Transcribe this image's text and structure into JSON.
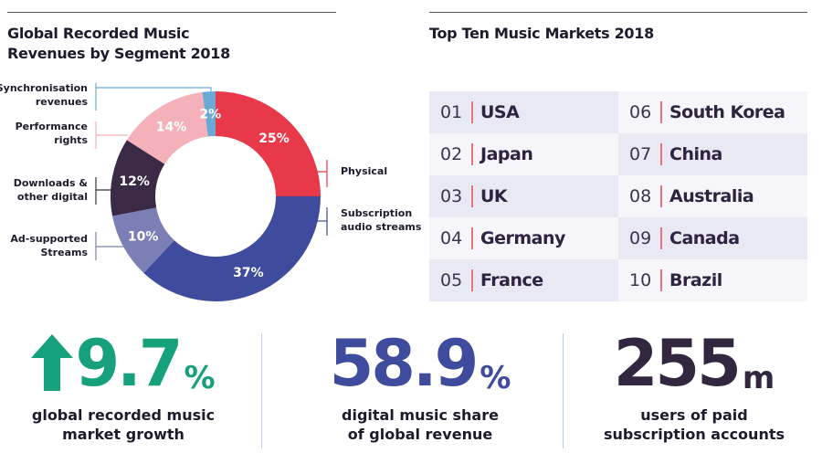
{
  "left_title": "Global Recorded Music Revenues by Segment 2018",
  "right_title": "Top Ten Music Markets 2018",
  "chart_data": {
    "type": "pie",
    "title": "Global Recorded Music Revenues by Segment 2018",
    "donut": true,
    "start": "top, clockwise",
    "slices": [
      {
        "label": "Physical",
        "value": 25,
        "display": "25%",
        "color": "#e8394a"
      },
      {
        "label": "Subscription audio streams",
        "value": 37,
        "display": "37%",
        "color": "#3f4b9c"
      },
      {
        "label": "Ad-supported Streams",
        "value": 10,
        "display": "10%",
        "color": "#7b7fb6"
      },
      {
        "label": "Downloads & other digital",
        "value": 12,
        "display": "12%",
        "color": "#3a2a45"
      },
      {
        "label": "Performance rights",
        "value": 14,
        "display": "14%",
        "color": "#f5b1b9"
      },
      {
        "label": "Synchronisation revenues",
        "value": 2,
        "display": "2%",
        "color": "#6aa9d6"
      }
    ]
  },
  "markets": [
    {
      "rank": "01",
      "name": "USA"
    },
    {
      "rank": "02",
      "name": "Japan"
    },
    {
      "rank": "03",
      "name": "UK"
    },
    {
      "rank": "04",
      "name": "Germany"
    },
    {
      "rank": "05",
      "name": "France"
    },
    {
      "rank": "06",
      "name": "South Korea"
    },
    {
      "rank": "07",
      "name": "China"
    },
    {
      "rank": "08",
      "name": "Australia"
    },
    {
      "rank": "09",
      "name": "Canada"
    },
    {
      "rank": "10",
      "name": "Brazil"
    }
  ],
  "stats": [
    {
      "value": "9.7",
      "unit": "%",
      "icon": "arrow-up-icon",
      "caption1": "global recorded music",
      "caption2": "market growth",
      "color": "#17a07c"
    },
    {
      "value": "58.9",
      "unit": "%",
      "caption1": "digital music share",
      "caption2": "of global revenue",
      "color": "#3f4b9c"
    },
    {
      "value": "255",
      "unit": "m",
      "caption1": "users of paid",
      "caption2": "subscription accounts",
      "color": "#33263f"
    }
  ]
}
